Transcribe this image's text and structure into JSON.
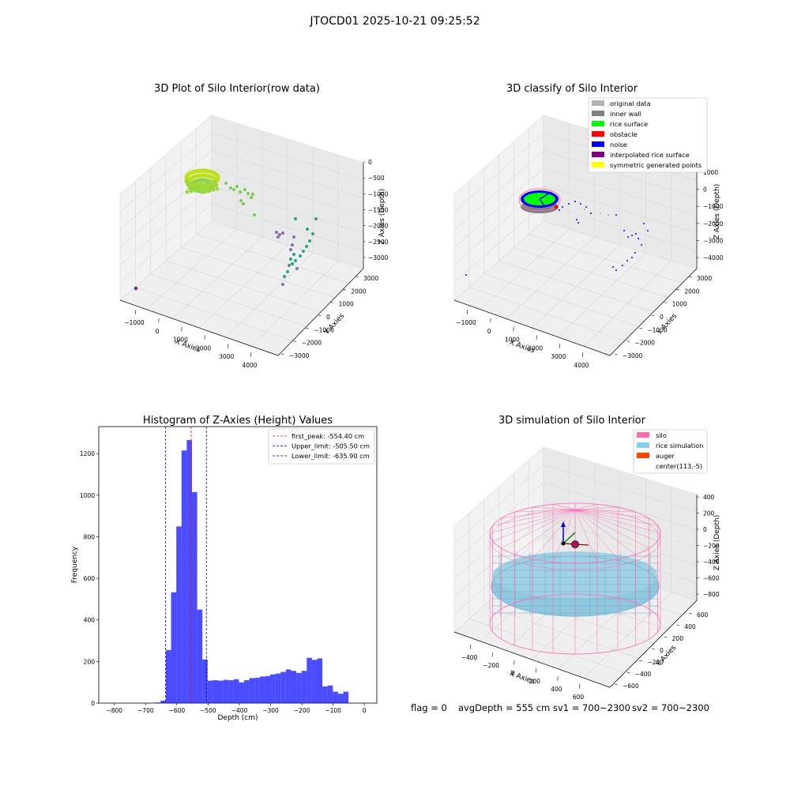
{
  "figure": {
    "suptitle": "JTOCD01 2025-10-21 09:25:52",
    "footer": {
      "flag": "flag = 0",
      "avg": "avgDepth = 555 cm",
      "sv1": "sv1 = 700~2300",
      "sv2": "sv2 = 700~2300"
    }
  },
  "chart_data": [
    {
      "type": "scatter",
      "projection": "3d",
      "title": "3D Plot of Silo Interior(row data)",
      "xlabel": "X Axies",
      "ylabel": "Y Axies",
      "zlabel": "Z Axies (Depth)",
      "x_ticks": [
        "−1000",
        "0",
        "1000",
        "2000",
        "3000",
        "4000"
      ],
      "y_ticks": [
        "−3000",
        "−2000",
        "−1000",
        "0",
        "1000",
        "2000",
        "3000"
      ],
      "z_ticks": [
        "0",
        "−500",
        "−1000",
        "−1500",
        "−2000",
        "−2500",
        "−3000"
      ],
      "colormap": "viridis",
      "colors": {
        "surface": "#bde01e",
        "mid": "#7cc94f",
        "teal": "#2e9e8a",
        "deep": "#8b6fae",
        "low": "#6a2f85"
      }
    },
    {
      "type": "scatter",
      "projection": "3d",
      "title": "3D classify of Silo Interior",
      "xlabel": "X Axies",
      "ylabel": "Y Axies",
      "zlabel": "Z Axies (Depth)",
      "x_ticks": [
        "−1000",
        "0",
        "1000",
        "2000",
        "3000",
        "4000"
      ],
      "y_ticks": [
        "−3000",
        "−2000",
        "−1000",
        "0",
        "1000",
        "2000",
        "3000"
      ],
      "z_ticks": [
        "1000",
        "0",
        "−1000",
        "−2000",
        "−3000",
        "−4000"
      ],
      "legend_position": "top-right",
      "legend": [
        {
          "label": "original data",
          "color": "#b3b3b3"
        },
        {
          "label": "inner wall",
          "color": "#808080"
        },
        {
          "label": "rice surface",
          "color": "#00ff00"
        },
        {
          "label": "obstacle",
          "color": "#ff0000"
        },
        {
          "label": "noise",
          "color": "#0000ff"
        },
        {
          "label": "interpolated rice surface",
          "color": "#800080"
        },
        {
          "label": "symmetric generated points",
          "color": "#ffff00"
        }
      ]
    },
    {
      "type": "bar",
      "title": "Histogram of Z-Axies (Height) Values",
      "xlabel": "Depth (cm)",
      "ylabel": "Frequency",
      "xlim": [
        -850,
        40
      ],
      "ylim": [
        0,
        1330
      ],
      "x_ticks": [
        -800,
        -700,
        -600,
        -500,
        -400,
        -300,
        -200,
        -100,
        0
      ],
      "x_tick_labels": [
        "−800",
        "−700",
        "−600",
        "−500",
        "−400",
        "−300",
        "−200",
        "−100",
        "0"
      ],
      "y_ticks": [
        0,
        200,
        400,
        600,
        800,
        1000,
        1200
      ],
      "y_tick_labels": [
        "0",
        "200",
        "400",
        "600",
        "800",
        "1000",
        "1200"
      ],
      "bin_width": 16.7,
      "bin_edges_start": -668.6,
      "values": [
        3,
        12,
        255,
        533,
        850,
        1215,
        1265,
        1015,
        450,
        210,
        108,
        110,
        108,
        112,
        110,
        115,
        100,
        110,
        120,
        122,
        128,
        130,
        138,
        142,
        150,
        162,
        155,
        145,
        155,
        218,
        208,
        215,
        80,
        85,
        55,
        45,
        55
      ],
      "bar_color": "#0000ff",
      "lines": [
        {
          "label": "first_peak: -554.40 cm",
          "x": -554.4,
          "color": "#ff0000"
        },
        {
          "label": "Upper_limit: -505.50 cm",
          "x": -505.5,
          "color": "#00008b"
        },
        {
          "label": "Lower_limit: -635.90 cm",
          "x": -635.9,
          "color": "#00008b"
        }
      ],
      "legend_position": "top-right"
    },
    {
      "type": "surface",
      "projection": "3d",
      "title": "3D simulation of Silo Interior",
      "xlabel": "X Axies",
      "ylabel": "Y Axies",
      "zlabel": "Z Axies (Depth)",
      "x_ticks": [
        "−400",
        "−200",
        "0",
        "200",
        "400",
        "600"
      ],
      "y_ticks": [
        "−600",
        "−400",
        "−200",
        "0",
        "200",
        "400",
        "600"
      ],
      "z_ticks": [
        "400",
        "200",
        "0",
        "−200",
        "−400",
        "−600",
        "−800"
      ],
      "legend_position": "top-right",
      "legend": [
        {
          "label": "silo",
          "color": "#ff69b4"
        },
        {
          "label": "rice simulation",
          "color": "#87ceeb"
        },
        {
          "label": "auger",
          "color": "#ff4500"
        },
        {
          "label": "center(113,-5)",
          "color": ""
        }
      ]
    }
  ]
}
